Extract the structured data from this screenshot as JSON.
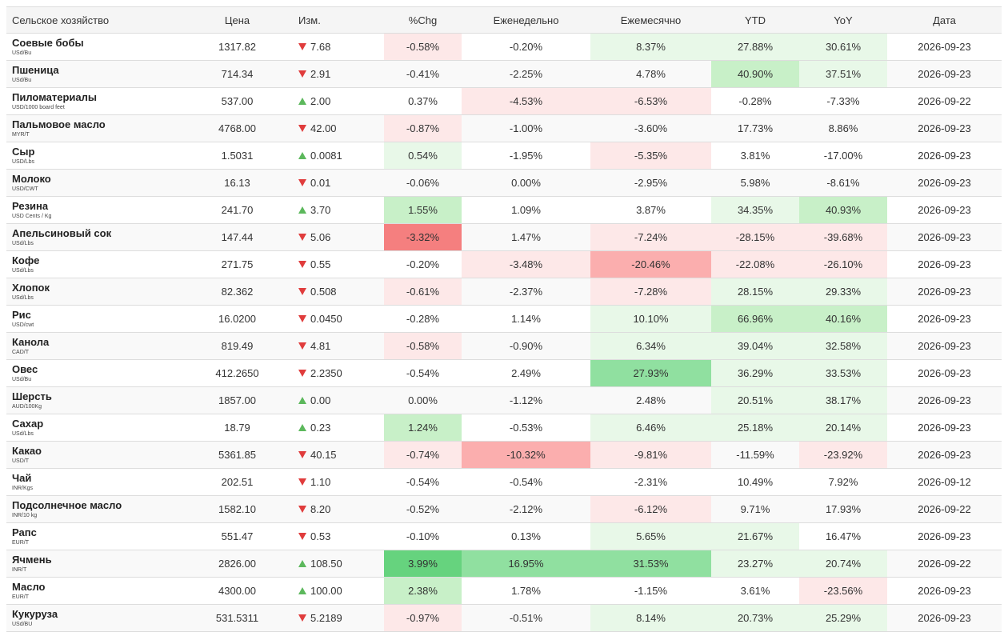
{
  "headers": {
    "name": "Сельское хозяйство",
    "price": "Цена",
    "change": "Изм.",
    "pct": "%Chg",
    "weekly": "Еженедельно",
    "monthly": "Ежемесячно",
    "ytd": "YTD",
    "yoy": "YoY",
    "date": "Дата"
  },
  "rows": [
    {
      "name": "Соевые бобы",
      "unit": "USd/Bu",
      "price": "1317.82",
      "dir": "down",
      "change": "7.68",
      "pct": "-0.58%",
      "weekly": "-0.20%",
      "monthly": "8.37%",
      "ytd": "27.88%",
      "yoy": "30.61%",
      "date": "2026-09-23"
    },
    {
      "name": "Пшеница",
      "unit": "USd/Bu",
      "price": "714.34",
      "dir": "down",
      "change": "2.91",
      "pct": "-0.41%",
      "weekly": "-2.25%",
      "monthly": "4.78%",
      "ytd": "40.90%",
      "yoy": "37.51%",
      "date": "2026-09-23"
    },
    {
      "name": "Пиломатериалы",
      "unit": "USD/1000 board feet",
      "price": "537.00",
      "dir": "up",
      "change": "2.00",
      "pct": "0.37%",
      "weekly": "-4.53%",
      "monthly": "-6.53%",
      "ytd": "-0.28%",
      "yoy": "-7.33%",
      "date": "2026-09-22"
    },
    {
      "name": "Пальмовое масло",
      "unit": "MYR/T",
      "price": "4768.00",
      "dir": "down",
      "change": "42.00",
      "pct": "-0.87%",
      "weekly": "-1.00%",
      "monthly": "-3.60%",
      "ytd": "17.73%",
      "yoy": "8.86%",
      "date": "2026-09-23"
    },
    {
      "name": "Сыр",
      "unit": "USD/Lbs",
      "price": "1.5031",
      "dir": "up",
      "change": "0.0081",
      "pct": "0.54%",
      "weekly": "-1.95%",
      "monthly": "-5.35%",
      "ytd": "3.81%",
      "yoy": "-17.00%",
      "date": "2026-09-23"
    },
    {
      "name": "Молоко",
      "unit": "USD/CWT",
      "price": "16.13",
      "dir": "down",
      "change": "0.01",
      "pct": "-0.06%",
      "weekly": "0.00%",
      "monthly": "-2.95%",
      "ytd": "5.98%",
      "yoy": "-8.61%",
      "date": "2026-09-23"
    },
    {
      "name": "Резина",
      "unit": "USD Cents / Kg",
      "price": "241.70",
      "dir": "up",
      "change": "3.70",
      "pct": "1.55%",
      "weekly": "1.09%",
      "monthly": "3.87%",
      "ytd": "34.35%",
      "yoy": "40.93%",
      "date": "2026-09-23"
    },
    {
      "name": "Апельсиновый сок",
      "unit": "USd/Lbs",
      "price": "147.44",
      "dir": "down",
      "change": "5.06",
      "pct": "-3.32%",
      "weekly": "1.47%",
      "monthly": "-7.24%",
      "ytd": "-28.15%",
      "yoy": "-39.68%",
      "date": "2026-09-23"
    },
    {
      "name": "Кофе",
      "unit": "USd/Lbs",
      "price": "271.75",
      "dir": "down",
      "change": "0.55",
      "pct": "-0.20%",
      "weekly": "-3.48%",
      "monthly": "-20.46%",
      "ytd": "-22.08%",
      "yoy": "-26.10%",
      "date": "2026-09-23"
    },
    {
      "name": "Хлопок",
      "unit": "USd/Lbs",
      "price": "82.362",
      "dir": "down",
      "change": "0.508",
      "pct": "-0.61%",
      "weekly": "-2.37%",
      "monthly": "-7.28%",
      "ytd": "28.15%",
      "yoy": "29.33%",
      "date": "2026-09-23"
    },
    {
      "name": "Рис",
      "unit": "USD/cwt",
      "price": "16.0200",
      "dir": "down",
      "change": "0.0450",
      "pct": "-0.28%",
      "weekly": "1.14%",
      "monthly": "10.10%",
      "ytd": "66.96%",
      "yoy": "40.16%",
      "date": "2026-09-23"
    },
    {
      "name": "Канола",
      "unit": "CAD/T",
      "price": "819.49",
      "dir": "down",
      "change": "4.81",
      "pct": "-0.58%",
      "weekly": "-0.90%",
      "monthly": "6.34%",
      "ytd": "39.04%",
      "yoy": "32.58%",
      "date": "2026-09-23"
    },
    {
      "name": "Овес",
      "unit": "USd/Bu",
      "price": "412.2650",
      "dir": "down",
      "change": "2.2350",
      "pct": "-0.54%",
      "weekly": "2.49%",
      "monthly": "27.93%",
      "ytd": "36.29%",
      "yoy": "33.53%",
      "date": "2026-09-23"
    },
    {
      "name": "Шерсть",
      "unit": "AUD/100Kg",
      "price": "1857.00",
      "dir": "up",
      "change": "0.00",
      "pct": "0.00%",
      "weekly": "-1.12%",
      "monthly": "2.48%",
      "ytd": "20.51%",
      "yoy": "38.17%",
      "date": "2026-09-23"
    },
    {
      "name": "Сахар",
      "unit": "USd/Lbs",
      "price": "18.79",
      "dir": "up",
      "change": "0.23",
      "pct": "1.24%",
      "weekly": "-0.53%",
      "monthly": "6.46%",
      "ytd": "25.18%",
      "yoy": "20.14%",
      "date": "2026-09-23"
    },
    {
      "name": "Какао",
      "unit": "USD/T",
      "price": "5361.85",
      "dir": "down",
      "change": "40.15",
      "pct": "-0.74%",
      "weekly": "-10.32%",
      "monthly": "-9.81%",
      "ytd": "-11.59%",
      "yoy": "-23.92%",
      "date": "2026-09-23"
    },
    {
      "name": "Чай",
      "unit": "INR/Kgs",
      "price": "202.51",
      "dir": "down",
      "change": "1.10",
      "pct": "-0.54%",
      "weekly": "-0.54%",
      "monthly": "-2.31%",
      "ytd": "10.49%",
      "yoy": "7.92%",
      "date": "2026-09-12"
    },
    {
      "name": "Подсолнечное масло",
      "unit": "INR/10 kg",
      "price": "1582.10",
      "dir": "down",
      "change": "8.20",
      "pct": "-0.52%",
      "weekly": "-2.12%",
      "monthly": "-6.12%",
      "ytd": "9.71%",
      "yoy": "17.93%",
      "date": "2026-09-22"
    },
    {
      "name": "Рапс",
      "unit": "EUR/T",
      "price": "551.47",
      "dir": "down",
      "change": "0.53",
      "pct": "-0.10%",
      "weekly": "0.13%",
      "monthly": "5.65%",
      "ytd": "21.67%",
      "yoy": "16.47%",
      "date": "2026-09-23"
    },
    {
      "name": "Ячмень",
      "unit": "INR/T",
      "price": "2826.00",
      "dir": "up",
      "change": "108.50",
      "pct": "3.99%",
      "weekly": "16.95%",
      "monthly": "31.53%",
      "ytd": "23.27%",
      "yoy": "20.74%",
      "date": "2026-09-22"
    },
    {
      "name": "Масло",
      "unit": "EUR/T",
      "price": "4300.00",
      "dir": "up",
      "change": "100.00",
      "pct": "2.38%",
      "weekly": "1.78%",
      "monthly": "-1.15%",
      "ytd": "3.61%",
      "yoy": "-23.56%",
      "date": "2026-09-23"
    },
    {
      "name": "Кукуруза",
      "unit": "USd/BU",
      "price": "531.5311",
      "dir": "down",
      "change": "5.2189",
      "pct": "-0.97%",
      "weekly": "-0.51%",
      "monthly": "8.14%",
      "ytd": "20.73%",
      "yoy": "25.29%",
      "date": "2026-09-23"
    }
  ],
  "colors": {
    "pos_light": "#e8f8e8",
    "pos_mid": "#c8f0c8",
    "pos_strong": "#90e0a0",
    "pos_max": "#66d37e",
    "neg_light": "#fde8e8",
    "neg_mid": "#fcd0d0",
    "neg_strong": "#fbaeae",
    "neg_max": "#f57f7f",
    "arrow_up": "#5cb85c",
    "arrow_down": "#e03c3c"
  }
}
